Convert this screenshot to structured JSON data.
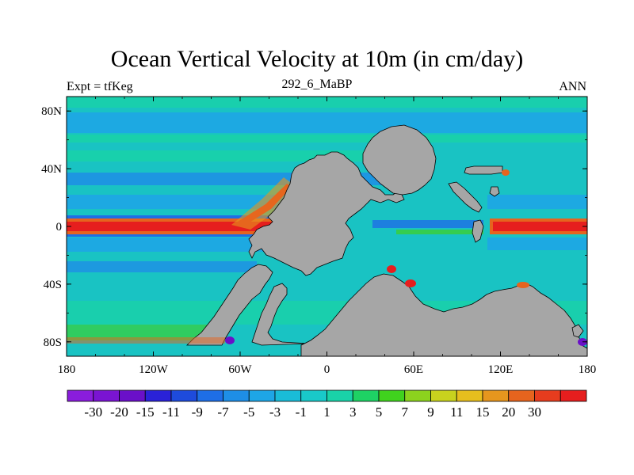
{
  "header": {
    "title": "Ocean Vertical Velocity at 10m (in cm/day)",
    "left": "Expt = tfKeg",
    "center": "292_6_MaBP",
    "right": "ANN"
  },
  "map": {
    "projection": "cylindrical equidistant",
    "lon_range": [
      -180,
      180
    ],
    "lat_range": [
      -90,
      90
    ],
    "land_color": "#a6a6a6",
    "ocean_base_color": "#19c3c3",
    "x_ticks": [
      "180",
      "120W",
      "60W",
      "0",
      "60E",
      "120E",
      "180"
    ],
    "y_ticks": [
      "80N",
      "40N",
      "0",
      "40S",
      "80S"
    ]
  },
  "colorbar": {
    "colors": [
      "#8a1ddc",
      "#7a14d2",
      "#6a10c8",
      "#2a22d8",
      "#1e4bdc",
      "#1e6ee6",
      "#1e8ee6",
      "#1ea6e6",
      "#19bcd8",
      "#19c9c9",
      "#19d2a8",
      "#1ed264",
      "#40d21e",
      "#8cd21e",
      "#c8d21e",
      "#e6be1e",
      "#e6961e",
      "#e6641e",
      "#e63c1e",
      "#e61e1e"
    ],
    "labels": [
      "-30",
      "-20",
      "-15",
      "-11",
      "-9",
      "-7",
      "-5",
      "-3",
      "-1",
      "1",
      "3",
      "5",
      "7",
      "9",
      "11",
      "15",
      "20",
      "30"
    ]
  }
}
